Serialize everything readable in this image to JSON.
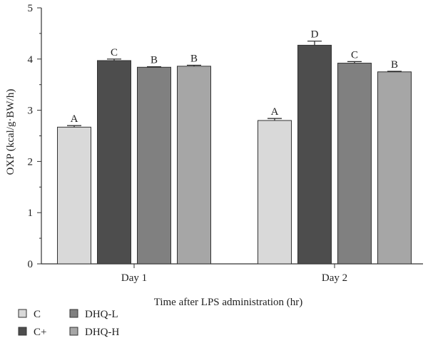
{
  "chart_data": {
    "type": "bar",
    "xlabel": "Time after LPS administration (hr)",
    "ylabel": "OXP (kcal/g·BW/h)",
    "ylim": [
      0,
      5
    ],
    "yticks": [
      0,
      1,
      2,
      3,
      4,
      5
    ],
    "categories": [
      "Day 1",
      "Day 2"
    ],
    "grid": false,
    "legend_position": "bottom-left",
    "series": [
      {
        "name": "C",
        "color": "#d9d9d9",
        "values": [
          2.67,
          2.8
        ],
        "errors": [
          0.03,
          0.04
        ],
        "labels": [
          "A",
          "A"
        ]
      },
      {
        "name": "C+",
        "color": "#4d4d4d",
        "values": [
          3.97,
          4.27
        ],
        "errors": [
          0.03,
          0.08
        ],
        "labels": [
          "C",
          "D"
        ]
      },
      {
        "name": "DHQ-L",
        "color": "#808080",
        "values": [
          3.84,
          3.92
        ],
        "errors": [
          0.01,
          0.03
        ],
        "labels": [
          "B",
          "C"
        ]
      },
      {
        "name": "DHQ-H",
        "color": "#a6a6a6",
        "values": [
          3.86,
          3.75
        ],
        "errors": [
          0.02,
          0.01
        ],
        "labels": [
          "B",
          "B"
        ]
      }
    ]
  }
}
